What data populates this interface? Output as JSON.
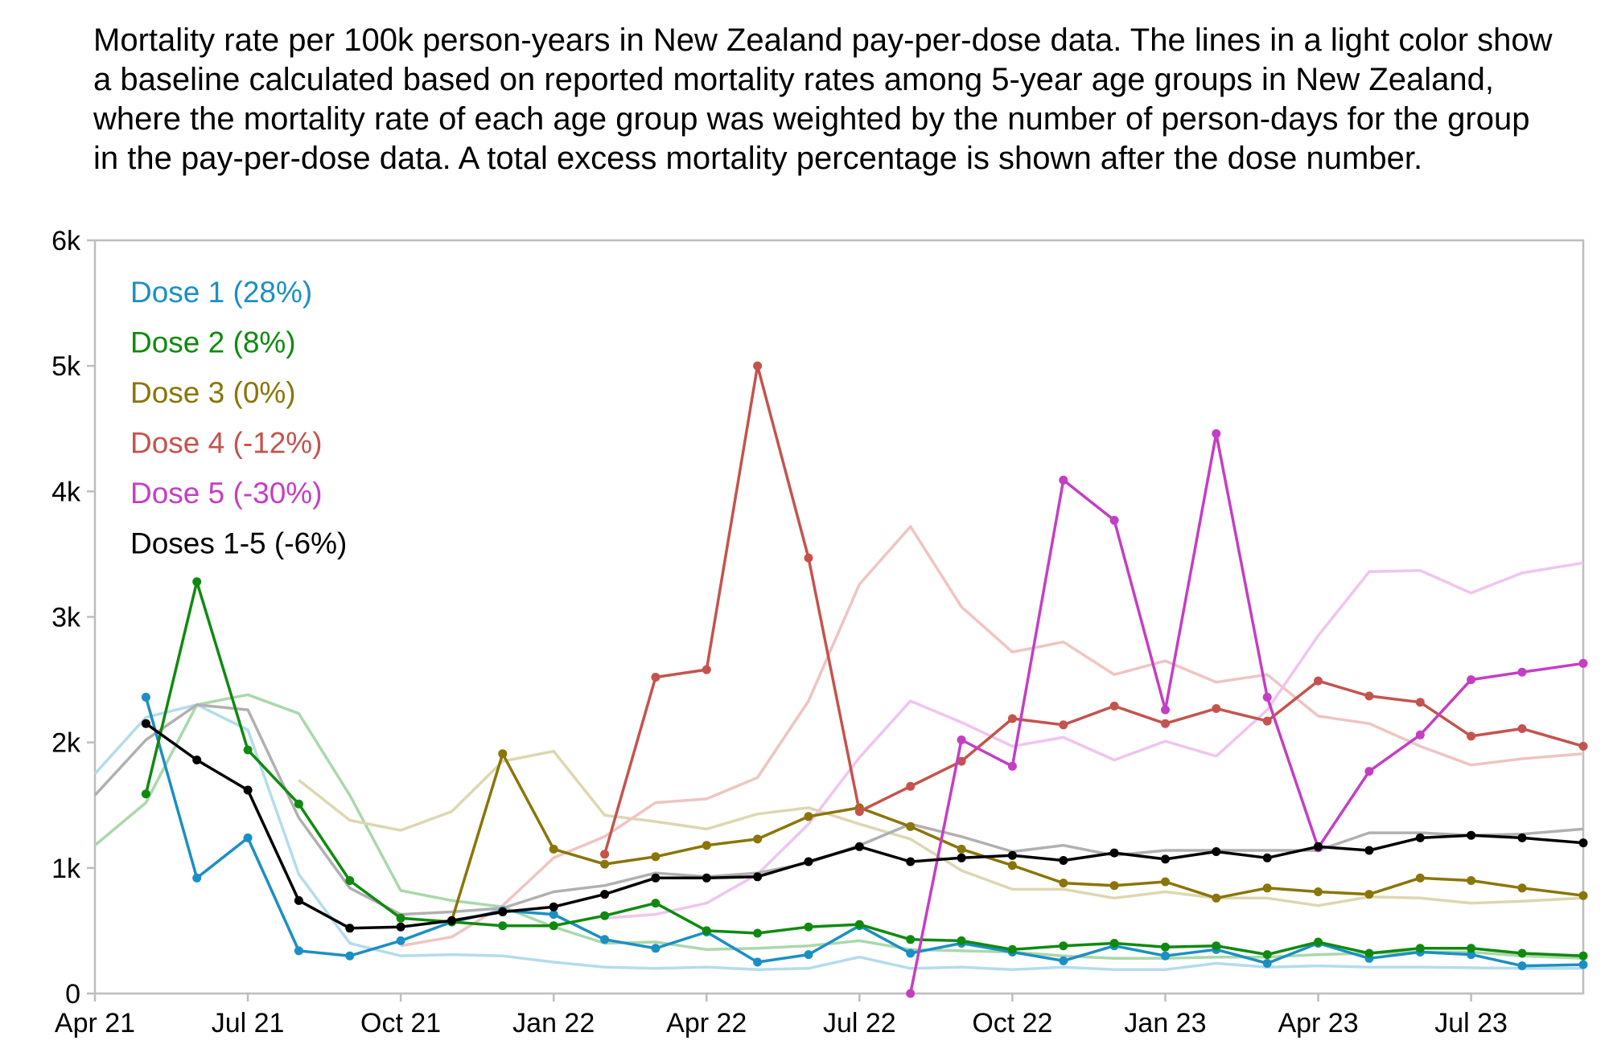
{
  "chart_data": {
    "type": "line",
    "title": "Mortality rate per 100k person-years in New Zealand pay-per-dose data. The lines in a light color show a baseline calculated based on reported mortality rates among 5-year age groups in New Zealand, where the mortality rate of each age group was weighted by the number of person-days for the group in the pay-per-dose data. A total excess mortality percentage is shown after the dose number.",
    "xlabel": "",
    "ylabel": "",
    "x_ticks": [
      "Apr 21",
      "Jul 21",
      "Oct 21",
      "Jan 22",
      "Apr 22",
      "Jul 22",
      "Oct 22",
      "Jan 23",
      "Apr 23",
      "Jul 23"
    ],
    "y_ticks": [
      "0",
      "1k",
      "2k",
      "3k",
      "4k",
      "5k",
      "6k"
    ],
    "ylim": [
      0,
      6000
    ],
    "x_unit": "month index from Apr 21",
    "xlim": [
      0,
      29.2
    ],
    "legend_position": "top-left",
    "grid": false,
    "series": [
      {
        "name": "Dose 1 (28%)",
        "color": "#1b8fc4",
        "baseline_color": "#b3dcec",
        "values": [
          [
            1,
            2360
          ],
          [
            2,
            920
          ],
          [
            3,
            1240
          ],
          [
            4,
            340
          ],
          [
            5,
            300
          ],
          [
            6,
            420
          ],
          [
            7,
            570
          ],
          [
            8,
            660
          ],
          [
            9,
            630
          ],
          [
            10,
            430
          ],
          [
            11,
            360
          ],
          [
            12,
            490
          ],
          [
            13,
            250
          ],
          [
            14,
            310
          ],
          [
            15,
            540
          ],
          [
            16,
            320
          ],
          [
            17,
            400
          ],
          [
            18,
            330
          ],
          [
            19,
            260
          ],
          [
            20,
            380
          ],
          [
            21,
            300
          ],
          [
            22,
            350
          ],
          [
            23,
            240
          ],
          [
            24,
            400
          ],
          [
            25,
            280
          ],
          [
            26,
            330
          ],
          [
            27,
            310
          ],
          [
            28,
            220
          ],
          [
            29.2,
            230
          ]
        ],
        "baseline": [
          [
            0,
            1750
          ],
          [
            1,
            2200
          ],
          [
            2,
            2300
          ],
          [
            3,
            2100
          ],
          [
            4,
            950
          ],
          [
            5,
            400
          ],
          [
            6,
            300
          ],
          [
            7,
            310
          ],
          [
            8,
            300
          ],
          [
            9,
            250
          ],
          [
            10,
            210
          ],
          [
            11,
            200
          ],
          [
            12,
            210
          ],
          [
            13,
            190
          ],
          [
            14,
            200
          ],
          [
            15,
            290
          ],
          [
            16,
            200
          ],
          [
            17,
            210
          ],
          [
            18,
            190
          ],
          [
            19,
            210
          ],
          [
            20,
            190
          ],
          [
            21,
            190
          ],
          [
            22,
            240
          ],
          [
            23,
            210
          ],
          [
            24,
            220
          ],
          [
            25,
            210
          ],
          [
            26,
            210
          ],
          [
            27,
            205
          ],
          [
            28,
            200
          ],
          [
            29.2,
            200
          ]
        ]
      },
      {
        "name": "Dose 2 (8%)",
        "color": "#0f8a0f",
        "baseline_color": "#aad8aa",
        "values": [
          [
            1,
            1590
          ],
          [
            2,
            3280
          ],
          [
            3,
            1940
          ],
          [
            4,
            1510
          ],
          [
            5,
            900
          ],
          [
            6,
            600
          ],
          [
            7,
            570
          ],
          [
            8,
            540
          ],
          [
            9,
            540
          ],
          [
            10,
            620
          ],
          [
            11,
            720
          ],
          [
            12,
            500
          ],
          [
            13,
            480
          ],
          [
            14,
            530
          ],
          [
            15,
            550
          ],
          [
            16,
            430
          ],
          [
            17,
            420
          ],
          [
            18,
            350
          ],
          [
            19,
            380
          ],
          [
            20,
            400
          ],
          [
            21,
            370
          ],
          [
            22,
            380
          ],
          [
            23,
            310
          ],
          [
            24,
            410
          ],
          [
            25,
            320
          ],
          [
            26,
            360
          ],
          [
            27,
            360
          ],
          [
            28,
            320
          ],
          [
            29.2,
            300
          ]
        ],
        "baseline": [
          [
            0,
            1180
          ],
          [
            1,
            1520
          ],
          [
            2,
            2300
          ],
          [
            3,
            2380
          ],
          [
            4,
            2230
          ],
          [
            5,
            1580
          ],
          [
            6,
            820
          ],
          [
            7,
            740
          ],
          [
            8,
            690
          ],
          [
            9,
            530
          ],
          [
            10,
            400
          ],
          [
            11,
            410
          ],
          [
            12,
            350
          ],
          [
            13,
            360
          ],
          [
            14,
            380
          ],
          [
            15,
            420
          ],
          [
            16,
            350
          ],
          [
            17,
            340
          ],
          [
            18,
            330
          ],
          [
            19,
            300
          ],
          [
            20,
            280
          ],
          [
            21,
            280
          ],
          [
            22,
            290
          ],
          [
            23,
            290
          ],
          [
            24,
            310
          ],
          [
            25,
            320
          ],
          [
            26,
            330
          ],
          [
            27,
            330
          ],
          [
            28,
            300
          ],
          [
            29.2,
            280
          ]
        ]
      },
      {
        "name": "Dose 3 (0%)",
        "color": "#8a7508",
        "baseline_color": "#ddd7b0",
        "values": [
          [
            7,
            580
          ],
          [
            8,
            1910
          ],
          [
            9,
            1150
          ],
          [
            10,
            1030
          ],
          [
            11,
            1090
          ],
          [
            12,
            1180
          ],
          [
            13,
            1230
          ],
          [
            14,
            1410
          ],
          [
            15,
            1480
          ],
          [
            16,
            1330
          ],
          [
            17,
            1150
          ],
          [
            18,
            1020
          ],
          [
            19,
            880
          ],
          [
            20,
            860
          ],
          [
            21,
            890
          ],
          [
            22,
            760
          ],
          [
            23,
            840
          ],
          [
            24,
            810
          ],
          [
            25,
            790
          ],
          [
            26,
            920
          ],
          [
            27,
            900
          ],
          [
            28,
            840
          ],
          [
            29.2,
            780
          ]
        ],
        "baseline": [
          [
            4,
            1700
          ],
          [
            5,
            1380
          ],
          [
            6,
            1300
          ],
          [
            7,
            1450
          ],
          [
            8,
            1850
          ],
          [
            9,
            1930
          ],
          [
            10,
            1420
          ],
          [
            11,
            1370
          ],
          [
            12,
            1310
          ],
          [
            13,
            1430
          ],
          [
            14,
            1480
          ],
          [
            15,
            1350
          ],
          [
            16,
            1230
          ],
          [
            17,
            980
          ],
          [
            18,
            830
          ],
          [
            19,
            830
          ],
          [
            20,
            760
          ],
          [
            21,
            810
          ],
          [
            22,
            760
          ],
          [
            23,
            760
          ],
          [
            24,
            700
          ],
          [
            25,
            770
          ],
          [
            26,
            760
          ],
          [
            27,
            720
          ],
          [
            28,
            735
          ],
          [
            29.2,
            760
          ]
        ]
      },
      {
        "name": "Dose 4 (-12%)",
        "color": "#c4534d",
        "baseline_color": "#efc4c1",
        "values": [
          [
            10,
            1110
          ],
          [
            11,
            2520
          ],
          [
            12,
            2580
          ],
          [
            13,
            5000
          ],
          [
            14,
            3470
          ],
          [
            15,
            1450
          ],
          [
            16,
            1650
          ],
          [
            17,
            1850
          ],
          [
            18,
            2190
          ],
          [
            19,
            2140
          ],
          [
            20,
            2290
          ],
          [
            21,
            2150
          ],
          [
            22,
            2270
          ],
          [
            23,
            2170
          ],
          [
            24,
            2490
          ],
          [
            25,
            2370
          ],
          [
            26,
            2320
          ],
          [
            27,
            2050
          ],
          [
            28,
            2110
          ],
          [
            29.2,
            1970
          ]
        ],
        "baseline": [
          [
            6,
            380
          ],
          [
            7,
            450
          ],
          [
            8,
            700
          ],
          [
            9,
            1080
          ],
          [
            10,
            1250
          ],
          [
            11,
            1520
          ],
          [
            12,
            1550
          ],
          [
            13,
            1720
          ],
          [
            14,
            2330
          ],
          [
            15,
            3260
          ],
          [
            16,
            3720
          ],
          [
            17,
            3080
          ],
          [
            18,
            2720
          ],
          [
            19,
            2800
          ],
          [
            20,
            2540
          ],
          [
            21,
            2650
          ],
          [
            22,
            2480
          ],
          [
            23,
            2540
          ],
          [
            24,
            2210
          ],
          [
            25,
            2150
          ],
          [
            26,
            1970
          ],
          [
            27,
            1820
          ],
          [
            28,
            1870
          ],
          [
            29.2,
            1910
          ]
        ]
      },
      {
        "name": "Dose 5 (-30%)",
        "color": "#c43ec4",
        "baseline_color": "#efc4ef",
        "values": [
          [
            16,
            0
          ],
          [
            17,
            2020
          ],
          [
            18,
            1810
          ],
          [
            19,
            4090
          ],
          [
            20,
            3770
          ],
          [
            21,
            2260
          ],
          [
            22,
            4460
          ],
          [
            23,
            2360
          ],
          [
            24,
            1160
          ],
          [
            25,
            1770
          ],
          [
            26,
            2060
          ],
          [
            27,
            2500
          ],
          [
            28,
            2560
          ],
          [
            29.2,
            2630
          ]
        ],
        "baseline": [
          [
            10,
            600
          ],
          [
            11,
            630
          ],
          [
            12,
            720
          ],
          [
            13,
            950
          ],
          [
            14,
            1350
          ],
          [
            15,
            1880
          ],
          [
            16,
            2330
          ],
          [
            17,
            2160
          ],
          [
            18,
            1970
          ],
          [
            19,
            2040
          ],
          [
            20,
            1860
          ],
          [
            21,
            2010
          ],
          [
            22,
            1890
          ],
          [
            23,
            2260
          ],
          [
            24,
            2850
          ],
          [
            25,
            3360
          ],
          [
            26,
            3370
          ],
          [
            27,
            3190
          ],
          [
            28,
            3350
          ],
          [
            29.2,
            3430
          ]
        ]
      },
      {
        "name": "Doses 1-5 (-6%)",
        "color": "#000000",
        "baseline_color": "#b0b0b0",
        "values": [
          [
            1,
            2150
          ],
          [
            2,
            1860
          ],
          [
            3,
            1620
          ],
          [
            4,
            740
          ],
          [
            5,
            520
          ],
          [
            6,
            530
          ],
          [
            7,
            580
          ],
          [
            8,
            650
          ],
          [
            9,
            690
          ],
          [
            10,
            790
          ],
          [
            11,
            920
          ],
          [
            12,
            920
          ],
          [
            13,
            930
          ],
          [
            14,
            1050
          ],
          [
            15,
            1170
          ],
          [
            16,
            1050
          ],
          [
            17,
            1080
          ],
          [
            18,
            1100
          ],
          [
            19,
            1060
          ],
          [
            20,
            1120
          ],
          [
            21,
            1070
          ],
          [
            22,
            1130
          ],
          [
            23,
            1080
          ],
          [
            24,
            1170
          ],
          [
            25,
            1140
          ],
          [
            26,
            1240
          ],
          [
            27,
            1260
          ],
          [
            28,
            1240
          ],
          [
            29.2,
            1200
          ]
        ],
        "baseline": [
          [
            0,
            1580
          ],
          [
            1,
            2020
          ],
          [
            2,
            2300
          ],
          [
            3,
            2260
          ],
          [
            4,
            1400
          ],
          [
            5,
            840
          ],
          [
            6,
            630
          ],
          [
            7,
            650
          ],
          [
            8,
            680
          ],
          [
            9,
            810
          ],
          [
            10,
            860
          ],
          [
            11,
            960
          ],
          [
            12,
            930
          ],
          [
            13,
            960
          ],
          [
            14,
            1040
          ],
          [
            15,
            1180
          ],
          [
            16,
            1350
          ],
          [
            17,
            1250
          ],
          [
            18,
            1130
          ],
          [
            19,
            1180
          ],
          [
            20,
            1100
          ],
          [
            21,
            1140
          ],
          [
            22,
            1140
          ],
          [
            23,
            1140
          ],
          [
            24,
            1140
          ],
          [
            25,
            1280
          ],
          [
            26,
            1280
          ],
          [
            27,
            1260
          ],
          [
            28,
            1270
          ],
          [
            29.2,
            1310
          ]
        ]
      }
    ]
  }
}
